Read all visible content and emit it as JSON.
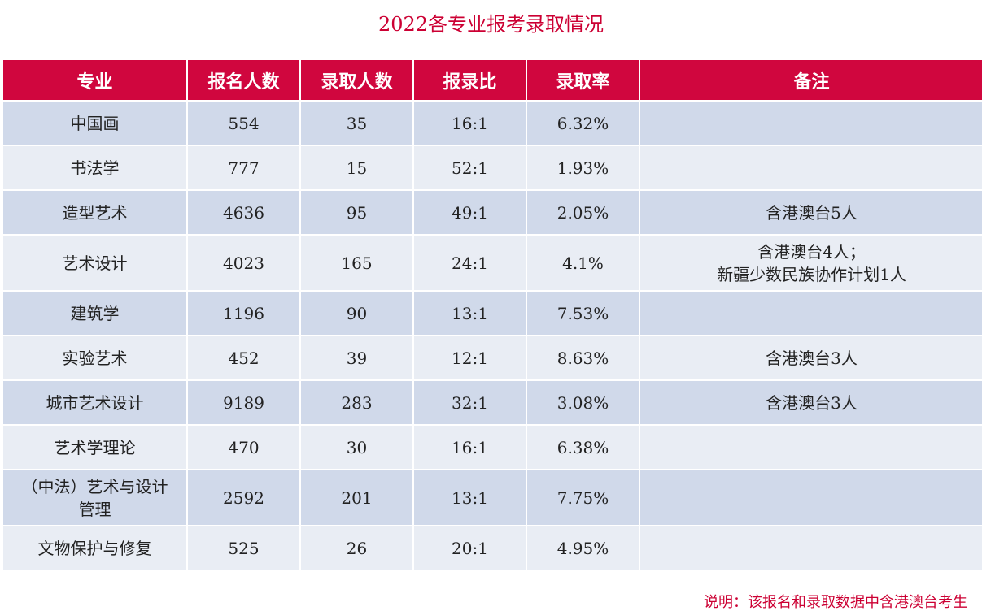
{
  "title": "2022各专业报考录取情况",
  "table": {
    "headers": [
      "专业",
      "报名人数",
      "录取人数",
      "报录比",
      "录取率",
      "备注"
    ],
    "rows": [
      {
        "major": "中国画",
        "applicants": "554",
        "admitted": "35",
        "ratio": "16:1",
        "rate": "6.32%",
        "remark": ""
      },
      {
        "major": "书法学",
        "applicants": "777",
        "admitted": "15",
        "ratio": "52:1",
        "rate": "1.93%",
        "remark": ""
      },
      {
        "major": "造型艺术",
        "applicants": "4636",
        "admitted": "95",
        "ratio": "49:1",
        "rate": "2.05%",
        "remark": "含港澳台5人"
      },
      {
        "major": "艺术设计",
        "applicants": "4023",
        "admitted": "165",
        "ratio": "24:1",
        "rate": "4.1%",
        "remark": "含港澳台4人；\n新疆少数民族协作计划1人"
      },
      {
        "major": "建筑学",
        "applicants": "1196",
        "admitted": "90",
        "ratio": "13:1",
        "rate": "7.53%",
        "remark": ""
      },
      {
        "major": "实验艺术",
        "applicants": "452",
        "admitted": "39",
        "ratio": "12:1",
        "rate": "8.63%",
        "remark": "含港澳台3人"
      },
      {
        "major": "城市艺术设计",
        "applicants": "9189",
        "admitted": "283",
        "ratio": "32:1",
        "rate": "3.08%",
        "remark": "含港澳台3人"
      },
      {
        "major": "艺术学理论",
        "applicants": "470",
        "admitted": "30",
        "ratio": "16:1",
        "rate": "6.38%",
        "remark": ""
      },
      {
        "major": "（中法）艺术与设计管理",
        "applicants": "2592",
        "admitted": "201",
        "ratio": "13:1",
        "rate": "7.75%",
        "remark": ""
      },
      {
        "major": "文物保护与修复",
        "applicants": "525",
        "admitted": "26",
        "ratio": "20:1",
        "rate": "4.95%",
        "remark": ""
      }
    ]
  },
  "note": "说明：该报名和录取数据中含港澳台考生",
  "colors": {
    "accent": "#d0063e",
    "row_dark": "#d0d9ea",
    "row_light": "#e9edf4",
    "note_text": "#cc0033"
  }
}
